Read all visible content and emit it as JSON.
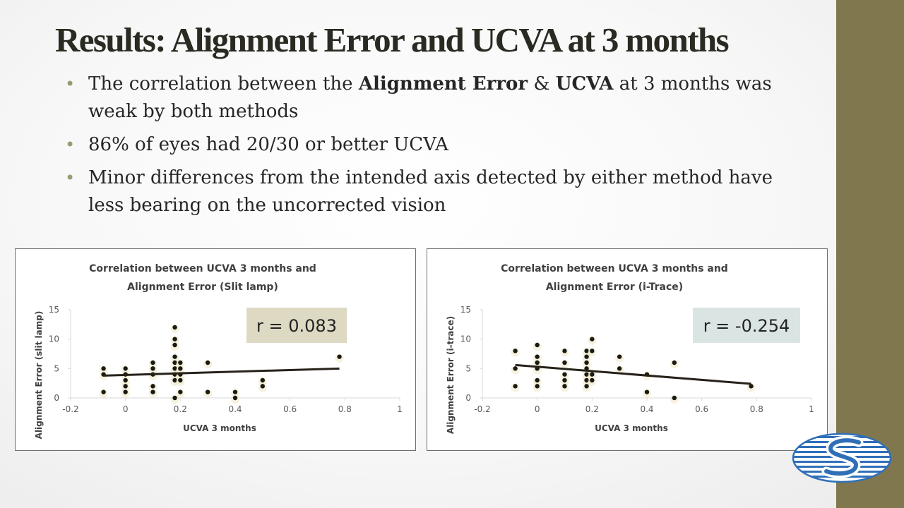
{
  "slide": {
    "title": "Results: Alignment Error and UCVA at 3 months",
    "bullets": [
      {
        "parts": [
          {
            "t": "The correlation between the "
          },
          {
            "t": "Alignment Error",
            "b": true
          },
          {
            "t": " & "
          },
          {
            "t": "UCVA",
            "b": true
          },
          {
            "t": " at 3 months was weak by both methods"
          }
        ]
      },
      {
        "parts": [
          {
            "t": "86% of eyes had 20/30 or better UCVA"
          }
        ]
      },
      {
        "parts": [
          {
            "t": "Minor differences from the intended axis detected by either method have less bearing on the uncorrected vision"
          }
        ]
      }
    ],
    "colors": {
      "accent_bar": "#80774f",
      "bullet_dot": "#9a9a73",
      "marker": "#1a1a14",
      "trendline": "#262219"
    }
  },
  "chart_data": [
    {
      "type": "scatter",
      "title": [
        "Correlation between UCVA 3 months and",
        "Alignment Error (Slit lamp)"
      ],
      "xlabel": "UCVA 3 months",
      "ylabel": "Alignment Error (slit lamp)",
      "xlim": [
        -0.2,
        1
      ],
      "ylim": [
        0,
        15
      ],
      "xticks": [
        -0.2,
        0,
        0.2,
        0.4,
        0.6,
        0.8,
        1
      ],
      "yticks": [
        0,
        5,
        10,
        15
      ],
      "grid": false,
      "annotation": {
        "text": "r = 0.083",
        "bg": "#ddd9c3"
      },
      "trendline": {
        "x": [
          -0.08,
          0.78
        ],
        "y": [
          3.8,
          5.0
        ]
      },
      "points": [
        [
          -0.08,
          5
        ],
        [
          -0.08,
          4
        ],
        [
          -0.08,
          1
        ],
        [
          0,
          5
        ],
        [
          0,
          4
        ],
        [
          0,
          3
        ],
        [
          0,
          2
        ],
        [
          0,
          1
        ],
        [
          0.1,
          6
        ],
        [
          0.1,
          5
        ],
        [
          0.1,
          4
        ],
        [
          0.1,
          2
        ],
        [
          0.1,
          1
        ],
        [
          0.18,
          12
        ],
        [
          0.18,
          10
        ],
        [
          0.18,
          9
        ],
        [
          0.18,
          7
        ],
        [
          0.18,
          6
        ],
        [
          0.18,
          5
        ],
        [
          0.18,
          4
        ],
        [
          0.18,
          3
        ],
        [
          0.18,
          0
        ],
        [
          0.2,
          6
        ],
        [
          0.2,
          5
        ],
        [
          0.2,
          4
        ],
        [
          0.2,
          3
        ],
        [
          0.2,
          1
        ],
        [
          0.3,
          6
        ],
        [
          0.3,
          1
        ],
        [
          0.4,
          1
        ],
        [
          0.4,
          0
        ],
        [
          0.5,
          3
        ],
        [
          0.5,
          2
        ],
        [
          0.78,
          7
        ]
      ]
    },
    {
      "type": "scatter",
      "title": [
        "Correlation between UCVA 3 months and",
        "Alignment Error (i-Trace)"
      ],
      "xlabel": "UCVA 3 months",
      "ylabel": "Alignment Error (i-trace)",
      "xlim": [
        -0.2,
        1
      ],
      "ylim": [
        0,
        15
      ],
      "xticks": [
        -0.2,
        0,
        0.2,
        0.4,
        0.6,
        0.8,
        1
      ],
      "yticks": [
        0,
        5,
        10,
        15
      ],
      "grid": false,
      "annotation": {
        "text": "r = -0.254",
        "bg": "#dae5e3"
      },
      "trendline": {
        "x": [
          -0.08,
          0.78
        ],
        "y": [
          5.6,
          2.4
        ]
      },
      "points": [
        [
          -0.08,
          8
        ],
        [
          -0.08,
          5
        ],
        [
          -0.08,
          2
        ],
        [
          0,
          9
        ],
        [
          0,
          7
        ],
        [
          0,
          6
        ],
        [
          0,
          5
        ],
        [
          0,
          3
        ],
        [
          0,
          2
        ],
        [
          0.1,
          8
        ],
        [
          0.1,
          6
        ],
        [
          0.1,
          4
        ],
        [
          0.1,
          3
        ],
        [
          0.1,
          2
        ],
        [
          0.18,
          8
        ],
        [
          0.18,
          7
        ],
        [
          0.18,
          6
        ],
        [
          0.18,
          5
        ],
        [
          0.18,
          4
        ],
        [
          0.18,
          3
        ],
        [
          0.18,
          2
        ],
        [
          0.2,
          10
        ],
        [
          0.2,
          8
        ],
        [
          0.2,
          4
        ],
        [
          0.2,
          3
        ],
        [
          0.3,
          7
        ],
        [
          0.3,
          5
        ],
        [
          0.4,
          4
        ],
        [
          0.4,
          1
        ],
        [
          0.5,
          6
        ],
        [
          0.5,
          0
        ],
        [
          0.78,
          2
        ]
      ]
    }
  ]
}
